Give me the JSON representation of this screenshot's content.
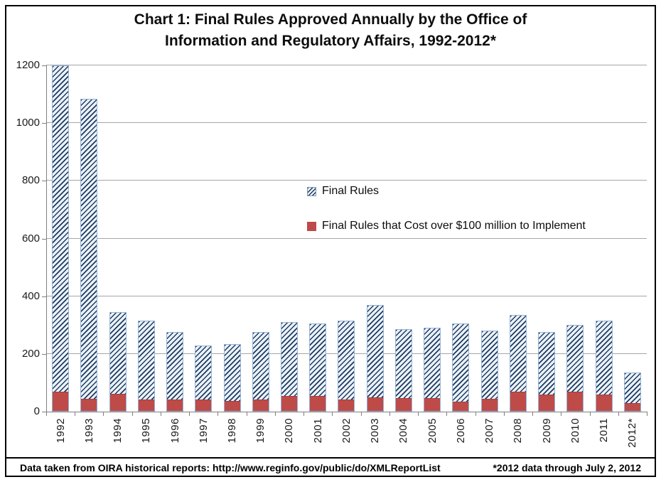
{
  "header": {
    "line1": "Chart 1: Final Rules Approved Annually by the Office of",
    "line2": "Information and Regulatory Affairs, 1992-2012*"
  },
  "footer": {
    "source": "Data taken from OIRA historical reports: http://www.reginfo.gov/public/do/XMLReportList",
    "note": "*2012 data through July 2, 2012"
  },
  "colors": {
    "costly_fill": "#be4b48",
    "hatch_stripe": "#1e3a5f",
    "hatch_background": "#eaf1f8",
    "bar_border": "#95b3d7",
    "gridline": "#a6a6a6",
    "axis": "#7f7f7f",
    "frame": "#000000"
  },
  "chart_data": {
    "type": "bar",
    "title": "Chart 1: Final Rules Approved Annually by the Office of Information and Regulatory Affairs, 1992-2012*",
    "xlabel": "",
    "ylabel": "",
    "ylim": [
      0,
      1200
    ],
    "ytick_step": 200,
    "grid": true,
    "legend_position": "inside-center-right",
    "bar_style": "total bar hatched; costly subset shown as solid red overlay at base",
    "categories": [
      "1992",
      "1993",
      "1994",
      "1995",
      "1996",
      "1997",
      "1998",
      "1999",
      "2000",
      "2001",
      "2002",
      "2003",
      "2004",
      "2005",
      "2006",
      "2007",
      "2008",
      "2009",
      "2010",
      "2011",
      "2012*"
    ],
    "series": [
      {
        "name": "Final Rules",
        "values": [
          1200,
          1085,
          345,
          315,
          275,
          230,
          235,
          275,
          310,
          305,
          315,
          370,
          285,
          290,
          305,
          280,
          335,
          275,
          300,
          315,
          135
        ]
      },
      {
        "name": "Final Rules that Cost over $100 million to Implement",
        "values": [
          63,
          40,
          57,
          38,
          38,
          36,
          33,
          38,
          50,
          50,
          38,
          45,
          43,
          42,
          30,
          40,
          65,
          55,
          65,
          53,
          25
        ]
      }
    ]
  }
}
